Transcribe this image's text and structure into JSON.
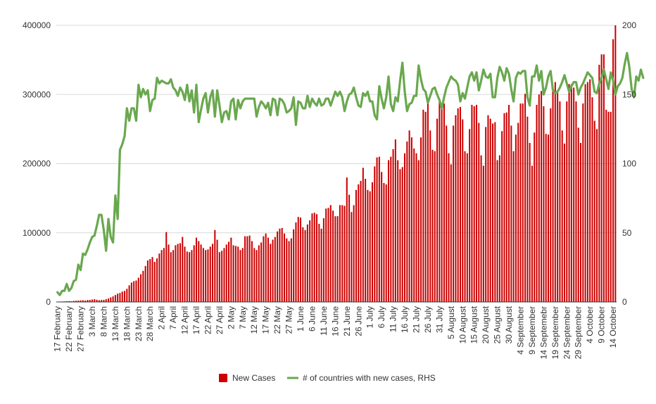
{
  "chart_data": {
    "type": "bar+line",
    "title": "",
    "xlabel": "",
    "ylabel": "",
    "y2label": "",
    "ylim": [
      0,
      400000
    ],
    "y2lim": [
      0,
      200
    ],
    "yticks": [
      "0",
      "100000",
      "200000",
      "300000",
      "400000"
    ],
    "y2ticks": [
      "0",
      "50",
      "100",
      "150",
      "200"
    ],
    "grid": true,
    "legend_position": "bottom",
    "x_labels": [
      "17 February",
      "22 February",
      "27 February",
      "3 March",
      "8 March",
      "13 March",
      "18 March",
      "23 March",
      "28 March",
      "2 April",
      "7 April",
      "12 April",
      "17 April",
      "22 April",
      "27 April",
      "2 May",
      "7 May",
      "12 May",
      "17 May",
      "22 May",
      "27 May",
      "1 June",
      "6 June",
      "11 June",
      "16 June",
      "21 June",
      "26 June",
      "1 July",
      "6 July",
      "11 July",
      "16 July",
      "21 July",
      "26 July",
      "31 July",
      "5 August",
      "10 August",
      "15 August",
      "20 August",
      "25 August",
      "30 August",
      "4 September",
      "9 September",
      "14 Septemebr",
      "19 September",
      "24 September",
      "29 September",
      "4 October",
      "9 October",
      "14 October"
    ],
    "x_label_step_days": 5,
    "series": [
      {
        "name": "New Cases",
        "type": "bar",
        "axis": "left",
        "color": "#cc0000",
        "values": [
          500,
          500,
          600,
          800,
          1000,
          1200,
          1000,
          1500,
          1800,
          2000,
          2200,
          2500,
          2000,
          2800,
          3000,
          3500,
          4000,
          3200,
          2500,
          2800,
          3000,
          4000,
          5000,
          6500,
          8000,
          10000,
          12000,
          13000,
          15000,
          16000,
          19000,
          24000,
          28000,
          30000,
          31000,
          35000,
          40000,
          45000,
          52000,
          60000,
          62000,
          65000,
          58000,
          63000,
          70000,
          75000,
          78000,
          101000,
          83000,
          72000,
          75000,
          82000,
          84000,
          85000,
          94000,
          80000,
          73000,
          72000,
          75000,
          82000,
          93000,
          88000,
          83000,
          78000,
          75000,
          76000,
          80000,
          84000,
          104000,
          90000,
          72000,
          74000,
          78000,
          83000,
          87000,
          93000,
          82000,
          81000,
          80000,
          75000,
          78000,
          95000,
          95000,
          96000,
          88000,
          78000,
          75000,
          82000,
          86000,
          95000,
          99000,
          93000,
          84000,
          90000,
          94000,
          102000,
          106000,
          107000,
          99000,
          92000,
          88000,
          92000,
          105000,
          115000,
          123000,
          122000,
          108000,
          104000,
          112000,
          118000,
          128000,
          129000,
          127000,
          113000,
          106000,
          121000,
          135000,
          136000,
          140000,
          132000,
          124000,
          124000,
          140000,
          140000,
          139000,
          180000,
          155000,
          130000,
          140000,
          162000,
          170000,
          175000,
          194000,
          178000,
          162000,
          160000,
          173000,
          196000,
          209000,
          210000,
          188000,
          172000,
          170000,
          205000,
          210000,
          221000,
          235000,
          205000,
          192000,
          195000,
          215000,
          232000,
          248000,
          238000,
          222000,
          215000,
          205000,
          238000,
          278000,
          275000,
          288000,
          248000,
          220000,
          218000,
          265000,
          290000,
          285000,
          287000,
          255000,
          215000,
          199000,
          255000,
          270000,
          280000,
          282000,
          264000,
          218000,
          215000,
          250000,
          285000,
          283000,
          285000,
          259000,
          212000,
          197000,
          253000,
          270000,
          265000,
          258000,
          260000,
          205000,
          212000,
          247000,
          273000,
          274000,
          285000,
          255000,
          218000,
          242000,
          259000,
          287000,
          287000,
          301000,
          268000,
          230000,
          197000,
          245000,
          285000,
          300000,
          305000,
          283000,
          243000,
          242000,
          280000,
          305000,
          318000,
          302000,
          290000,
          248000,
          229000,
          290000,
          315000,
          315000,
          310000,
          290000,
          252000,
          230000,
          287000,
          315000,
          318000,
          322000,
          296000,
          262000,
          250000,
          343000,
          358000,
          358000,
          278000,
          275000,
          275000,
          380000,
          400000
        ]
      },
      {
        "name": "# of countries with new cases, RHS",
        "type": "line",
        "axis": "right",
        "color": "#6aa84f",
        "values": [
          7,
          5,
          8,
          8,
          13,
          8,
          10,
          15,
          16,
          27,
          23,
          35,
          34,
          38,
          43,
          47,
          48,
          55,
          63,
          63,
          52,
          37,
          60,
          47,
          43,
          77,
          60,
          110,
          114,
          120,
          140,
          131,
          140,
          140,
          131,
          157,
          148,
          154,
          150,
          153,
          138,
          146,
          147,
          162,
          158,
          160,
          159,
          158,
          158,
          161,
          155,
          153,
          149,
          155,
          152,
          146,
          157,
          145,
          153,
          137,
          157,
          130,
          139,
          147,
          151,
          137,
          148,
          153,
          134,
          153,
          142,
          130,
          137,
          138,
          132,
          145,
          147,
          132,
          146,
          140,
          145,
          147,
          147,
          147,
          147,
          147,
          134,
          141,
          145,
          143,
          140,
          144,
          135,
          147,
          146,
          135,
          147,
          146,
          143,
          137,
          138,
          140,
          148,
          128,
          145,
          144,
          140,
          140,
          149,
          141,
          147,
          144,
          142,
          147,
          142,
          143,
          147,
          147,
          142,
          147,
          152,
          149,
          152,
          148,
          138,
          145,
          150,
          151,
          155,
          148,
          142,
          141,
          151,
          149,
          152,
          145,
          145,
          135,
          132,
          156,
          147,
          140,
          148,
          163,
          143,
          138,
          148,
          145,
          160,
          173,
          152,
          138,
          143,
          144,
          149,
          149,
          171,
          161,
          154,
          152,
          144,
          149,
          154,
          155,
          150,
          146,
          140,
          148,
          155,
          159,
          163,
          161,
          160,
          157,
          145,
          151,
          147,
          155,
          163,
          166,
          160,
          166,
          153,
          160,
          168,
          163,
          162,
          165,
          148,
          148,
          162,
          170,
          166,
          160,
          169,
          165,
          154,
          145,
          162,
          166,
          165,
          167,
          167,
          148,
          142,
          163,
          163,
          171,
          160,
          167,
          150,
          155,
          163,
          167,
          153,
          151,
          152,
          155,
          159,
          164,
          158,
          152,
          156,
          159,
          159,
          150,
          155,
          158,
          162,
          166,
          164,
          162,
          152,
          151,
          158,
          162,
          168,
          161,
          154,
          166,
          160,
          150,
          156,
          158,
          162,
          172,
          180,
          170,
          154,
          148,
          163,
          160,
          168,
          162
        ]
      }
    ]
  }
}
